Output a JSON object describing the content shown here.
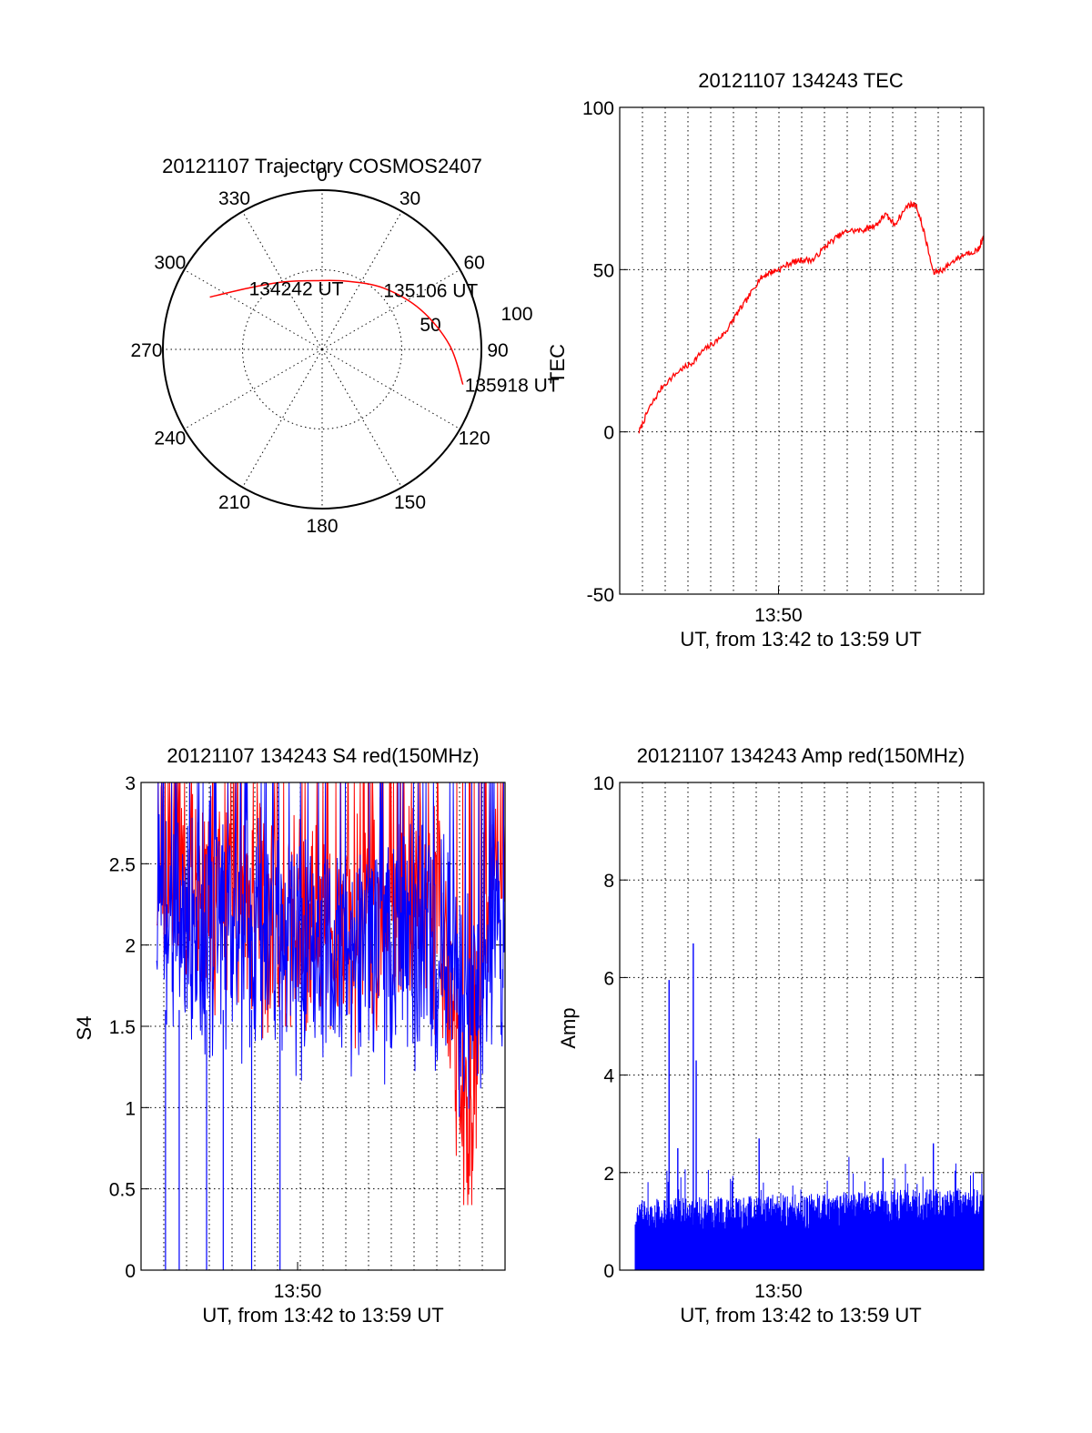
{
  "colors": {
    "red": "#ff0000",
    "blue": "#0000ff",
    "axis": "#000000",
    "background": "#ffffff"
  },
  "chart_data": [
    {
      "type": "polar",
      "title": "20121107 Trajectory COSMOS2407",
      "azimuth_labels": [
        "0",
        "30",
        "60",
        "90",
        "120",
        "150",
        "180",
        "210",
        "240",
        "270",
        "300",
        "330"
      ],
      "radial_labels": [
        "50",
        "100"
      ],
      "elevation_range": [
        0,
        90
      ],
      "grid": true,
      "series": [
        {
          "color": "#ff0000",
          "points": [
            {
              "az": 295,
              "el": 20
            },
            {
              "az": 310,
              "el": 36
            },
            {
              "az": 330,
              "el": 46
            },
            {
              "az": 355,
              "el": 51
            },
            {
              "az": 20,
              "el": 49
            },
            {
              "az": 45,
              "el": 41
            },
            {
              "az": 68,
              "el": 30
            },
            {
              "az": 88,
              "el": 18
            },
            {
              "az": 104,
              "el": 8
            }
          ]
        }
      ],
      "annotations": [
        {
          "text": "134242 UT",
          "az": 310,
          "el": 36
        },
        {
          "text": "135106 UT",
          "az": 45,
          "el": 41
        },
        {
          "text": "135918 UT",
          "az": 104,
          "el": 8
        }
      ]
    },
    {
      "type": "line",
      "title": "20121107 134243 TEC",
      "ylabel": "TEC",
      "xlabel": "UT, from 13:42 to 13:59 UT",
      "x_tick_labels": [
        {
          "t": 50,
          "label": "13:50"
        }
      ],
      "xlim": [
        41.8,
        60.6
      ],
      "ylim": [
        -50,
        100
      ],
      "y_ticks": [
        "100",
        "50",
        "0",
        "-50"
      ],
      "grid": true,
      "series": [
        {
          "color": "#ff0000",
          "x": [
            42.8,
            43.3,
            44.0,
            44.9,
            45.5,
            46.1,
            46.8,
            47.3,
            47.8,
            48.4,
            49.0,
            49.5,
            50.0,
            50.6,
            51.2,
            51.8,
            52.4,
            53.0,
            53.6,
            54.3,
            54.7,
            55.1,
            55.5,
            56.0,
            56.7,
            57.1,
            57.5,
            58.0,
            58.5,
            59.1,
            59.7,
            60.3,
            60.6
          ],
          "y": [
            0,
            7,
            14,
            19,
            21,
            25,
            28,
            31,
            36,
            41,
            47,
            49,
            50,
            52,
            53,
            53,
            57,
            60,
            62,
            62,
            63,
            64,
            67,
            64,
            70,
            70,
            62,
            49,
            50,
            53,
            55,
            56,
            60
          ]
        }
      ]
    },
    {
      "type": "line",
      "title": "20121107 134243 S4 red(150MHz)",
      "ylabel": "S4",
      "xlabel": "UT, from 13:42 to 13:59 UT",
      "x_tick_labels": [
        {
          "t": 50,
          "label": "13:50"
        }
      ],
      "xlim": [
        42.0,
        60.6
      ],
      "ylim": [
        0,
        3
      ],
      "y_ticks": [
        "3",
        "2.5",
        "2",
        "1.5",
        "1",
        "0.5",
        "0"
      ],
      "grid": true,
      "series": [
        {
          "color": "#ff0000",
          "t": [
            42.8,
            60.6
          ],
          "level_profile": [
            [
              42.8,
              2.45
            ],
            [
              46.0,
              2.3
            ],
            [
              49.0,
              2.15
            ],
            [
              51.0,
              2.0
            ],
            [
              53.0,
              2.1
            ],
            [
              55.0,
              2.3
            ],
            [
              57.5,
              2.1
            ],
            [
              58.3,
              1.0
            ],
            [
              58.9,
              0.7
            ],
            [
              59.5,
              2.2
            ],
            [
              60.6,
              2.6
            ]
          ],
          "spread": 0.55,
          "ymax": 3
        },
        {
          "color": "#0000ff",
          "t": [
            42.8,
            60.6
          ],
          "level_profile": [
            [
              42.8,
              2.2
            ],
            [
              46.0,
              2.1
            ],
            [
              49.0,
              2.0
            ],
            [
              52.0,
              1.9
            ],
            [
              55.0,
              2.0
            ],
            [
              57.5,
              2.05
            ],
            [
              58.5,
              1.7
            ],
            [
              59.3,
              1.8
            ],
            [
              60.6,
              1.9
            ]
          ],
          "spread": 0.6,
          "ymax": 3,
          "dropouts": [
            43.25,
            43.95,
            45.35,
            46.2,
            47.65,
            49.1
          ]
        }
      ]
    },
    {
      "type": "bar",
      "title": "20121107 134243 Amp red(150MHz)",
      "ylabel": "Amp",
      "xlabel": "UT, from 13:42 to 13:59 UT",
      "x_tick_labels": [
        {
          "t": 50,
          "label": "13:50"
        }
      ],
      "xlim": [
        41.8,
        60.6
      ],
      "ylim": [
        0,
        10
      ],
      "y_ticks": [
        "10",
        "8",
        "6",
        "4",
        "2",
        "0"
      ],
      "grid": true,
      "series": [
        {
          "color": "#0000ff",
          "t": [
            42.6,
            60.6
          ],
          "base_level": 0.95,
          "spread": 0.45,
          "peaks": [
            {
              "t": 44.35,
              "value": 5.95
            },
            {
              "t": 45.6,
              "value": 6.7
            },
            {
              "t": 45.75,
              "value": 4.3
            },
            {
              "t": 44.8,
              "value": 2.5
            },
            {
              "t": 49.0,
              "value": 2.7
            },
            {
              "t": 55.4,
              "value": 2.3
            },
            {
              "t": 58.0,
              "value": 2.6
            }
          ]
        }
      ]
    }
  ]
}
